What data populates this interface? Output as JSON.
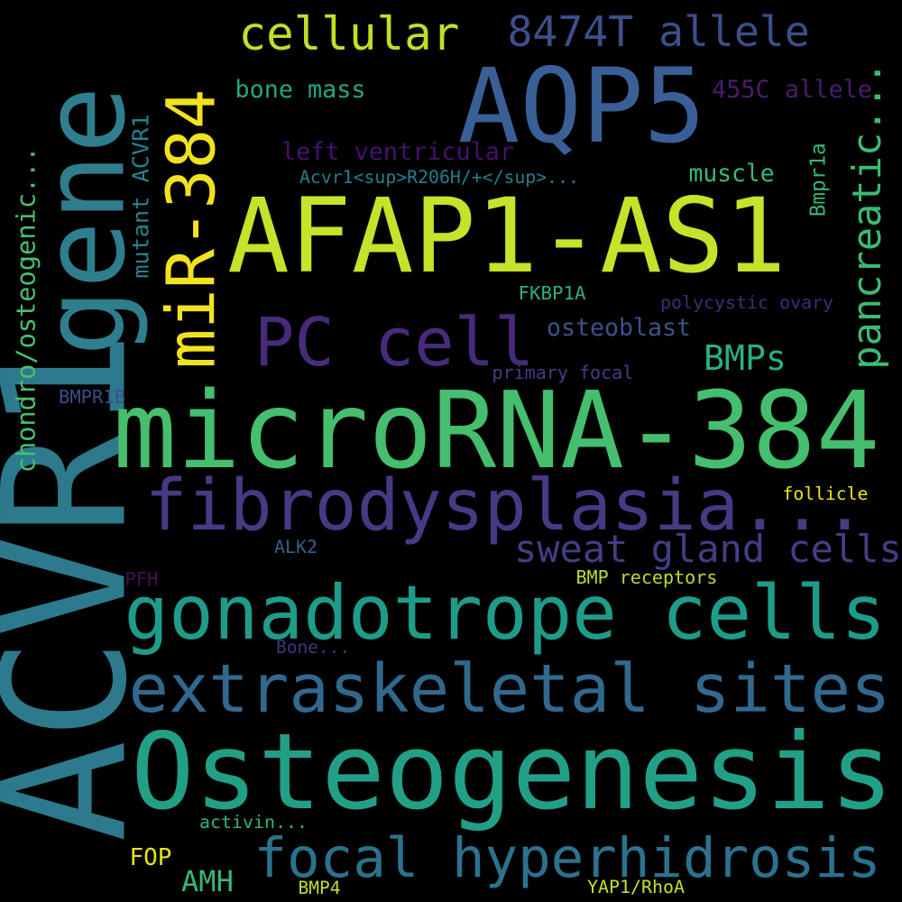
{
  "words": [
    {
      "text": "ACVR1",
      "color": "#2c7a8c"
    },
    {
      "text": "gene",
      "color": "#2f7e8e"
    },
    {
      "text": "AQP5",
      "color": "#3a5f96"
    },
    {
      "text": "AFAP1-AS1",
      "color": "#c6e22a"
    },
    {
      "text": "microRNA-384",
      "color": "#45be6e"
    },
    {
      "text": "Osteogenesis",
      "color": "#22a087"
    },
    {
      "text": "fibrodysplasia...",
      "color": "#463a84"
    },
    {
      "text": "gonadotrope cells",
      "color": "#1f9b8a"
    },
    {
      "text": "extraskeletal sites",
      "color": "#31688e"
    },
    {
      "text": "PC cell",
      "color": "#472b7a"
    },
    {
      "text": "miR-384",
      "color": "#f2e21e"
    },
    {
      "text": "focal hyperhidrosis",
      "color": "#2b728e"
    },
    {
      "text": "cellular",
      "color": "#c2df23"
    },
    {
      "text": "8474T allele",
      "color": "#3c4f8a"
    },
    {
      "text": "chondro/osteogenic...",
      "color": "#47c06f"
    },
    {
      "text": "mutant ACVR1",
      "color": "#25848e"
    },
    {
      "text": "pancreatic...",
      "color": "#3bbb75"
    },
    {
      "text": "Bmpr1a",
      "color": "#35b779"
    },
    {
      "text": "sweat gland cells",
      "color": "#433e85"
    },
    {
      "text": "BMPs",
      "color": "#2ab07f"
    },
    {
      "text": "bone mass",
      "color": "#25a585"
    },
    {
      "text": "455C allele",
      "color": "#4a1c6b"
    },
    {
      "text": "left ventricular",
      "color": "#46106f"
    },
    {
      "text": "muscle",
      "color": "#3ab87a"
    },
    {
      "text": "Acvr1<sup>R206H/+</sup>...",
      "color": "#287d8e"
    },
    {
      "text": "osteoblast",
      "color": "#3b528b"
    },
    {
      "text": "FKBP1A",
      "color": "#2cb17e"
    },
    {
      "text": "polycystic ovary",
      "color": "#482878"
    },
    {
      "text": "primary focal",
      "color": "#433d84"
    },
    {
      "text": "BMPR1B",
      "color": "#3e4c8a"
    },
    {
      "text": "follicle",
      "color": "#f1e51d"
    },
    {
      "text": "ALK2",
      "color": "#33628d"
    },
    {
      "text": "PFH",
      "color": "#440f54"
    },
    {
      "text": "BMP receptors",
      "color": "#b5de2b"
    },
    {
      "text": "Bone...",
      "color": "#46327e"
    },
    {
      "text": "activin...",
      "color": "#2fb47c"
    },
    {
      "text": "FOP",
      "color": "#e5e419"
    },
    {
      "text": "AMH",
      "color": "#35b779"
    },
    {
      "text": "BMP4",
      "color": "#bddf26"
    },
    {
      "text": "YAP1/RhoA",
      "color": "#c8e020"
    }
  ]
}
